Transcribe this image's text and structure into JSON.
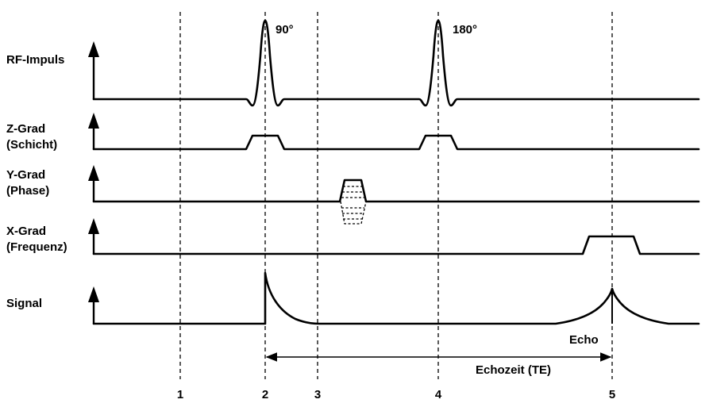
{
  "rows": [
    {
      "id": "rf",
      "label_line1": "RF-Impuls",
      "label_line2": ""
    },
    {
      "id": "zgrad",
      "label_line1": "Z-Grad",
      "label_line2": "(Schicht)"
    },
    {
      "id": "ygrad",
      "label_line1": "Y-Grad",
      "label_line2": "(Phase)"
    },
    {
      "id": "xgrad",
      "label_line1": "X-Grad",
      "label_line2": "(Frequenz)"
    },
    {
      "id": "signal",
      "label_line1": "Signal",
      "label_line2": ""
    }
  ],
  "pulses": {
    "first": "90°",
    "second": "180°"
  },
  "echo_label": "Echo",
  "te_label": "Echozeit (TE)",
  "time_markers": [
    "1",
    "2",
    "3",
    "4",
    "5"
  ]
}
